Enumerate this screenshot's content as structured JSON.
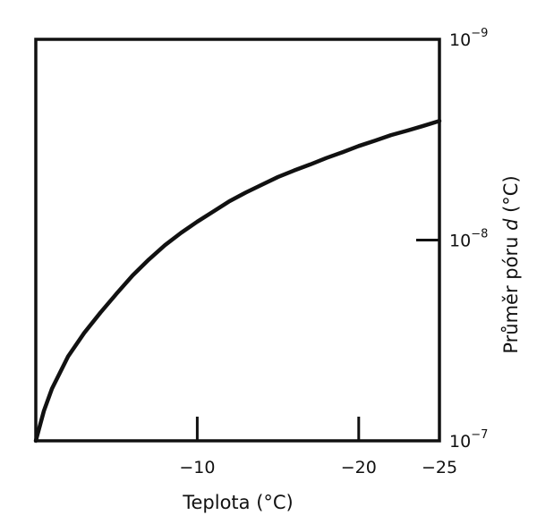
{
  "chart_data": {
    "type": "line",
    "title": "",
    "xlabel": "Teplota (°C)",
    "ylabel_prefix": "Průměr póru ",
    "ylabel_var": "d",
    "ylabel_suffix": " (°C)",
    "xlim": [
      0,
      -25
    ],
    "y_scale": "log",
    "ylim": [
      1e-07,
      1e-09
    ],
    "x_ticks": [
      {
        "value": -10,
        "label": "−10"
      },
      {
        "value": -20,
        "label": "−20"
      },
      {
        "value": -25,
        "label": "−25"
      }
    ],
    "y_ticks": [
      {
        "value": 1e-09,
        "base": "10",
        "exp": "−9"
      },
      {
        "value": 1e-08,
        "base": "10",
        "exp": "−8"
      },
      {
        "value": 1e-07,
        "base": "10",
        "exp": "−7"
      }
    ],
    "series": [
      {
        "x": [
          0,
          -0.5,
          -1,
          -2,
          -3,
          -4,
          -5,
          -6,
          -7,
          -8,
          -9,
          -10,
          -11,
          -12,
          -13,
          -14,
          -15,
          -16,
          -17,
          -18,
          -19,
          -20,
          -21,
          -22,
          -23,
          -24,
          -25
        ],
        "y": [
          1e-07,
          7.1e-08,
          5.5e-08,
          3.8e-08,
          2.9e-08,
          2.3e-08,
          1.85e-08,
          1.5e-08,
          1.25e-08,
          1.06e-08,
          9.2e-09,
          8.1e-09,
          7.2e-09,
          6.4e-09,
          5.8e-09,
          5.3e-09,
          4.85e-09,
          4.5e-09,
          4.2e-09,
          3.9e-09,
          3.65e-09,
          3.4e-09,
          3.2e-09,
          3e-09,
          2.85e-09,
          2.7e-09,
          2.55e-09
        ]
      }
    ],
    "grid": false,
    "colors": {
      "line": "#111111",
      "axes": "#111111"
    }
  }
}
